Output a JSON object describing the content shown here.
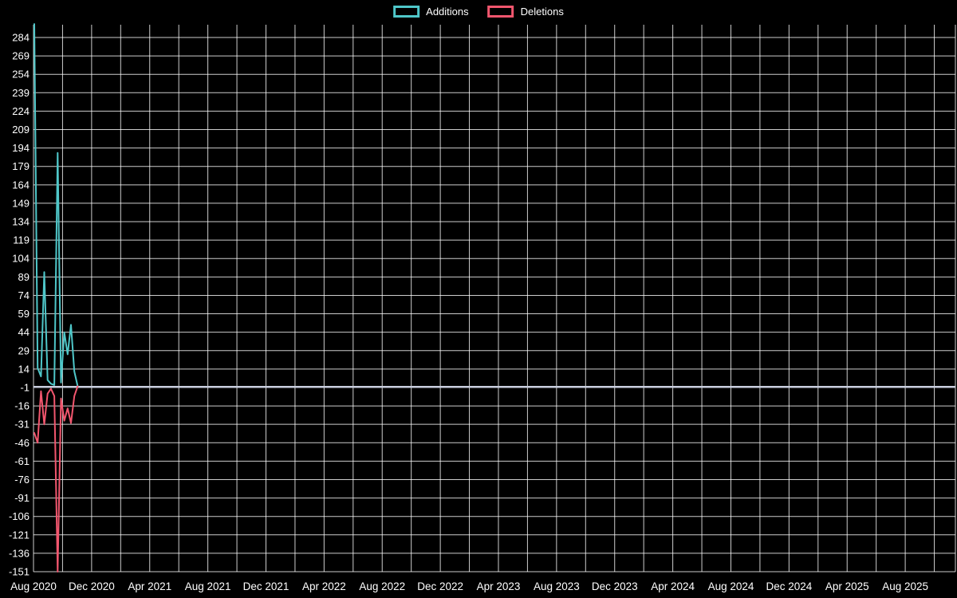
{
  "chart_data": {
    "type": "line",
    "title": "",
    "legend_position": "top",
    "grid": true,
    "background_color": "#000000",
    "grid_color": "rgba(255,255,255,0.8)",
    "zero_line": {
      "value": -0.5,
      "color": "#c9cede"
    },
    "x_axis": {
      "tick_labels": [
        "Aug 2020",
        "Dec 2020",
        "Apr 2021",
        "Aug 2021",
        "Dec 2021",
        "Apr 2022",
        "Aug 2022",
        "Dec 2022",
        "Apr 2023",
        "Aug 2023",
        "Dec 2023",
        "Apr 2024",
        "Aug 2024",
        "Dec 2024",
        "Apr 2025",
        "Aug 2025"
      ]
    },
    "y_axis": {
      "ticks": [
        284,
        269,
        254,
        239,
        224,
        209,
        194,
        179,
        164,
        149,
        134,
        119,
        104,
        89,
        74,
        59,
        44,
        29,
        14,
        -1,
        -16,
        -31,
        -46,
        -61,
        -76,
        -91,
        -106,
        -121,
        -136,
        -151
      ],
      "range": [
        -151,
        299
      ]
    },
    "x": [
      "2020-08-02",
      "2020-08-09",
      "2020-08-16",
      "2020-08-23",
      "2020-08-30",
      "2020-09-06",
      "2020-09-13",
      "2020-09-20",
      "2020-09-27",
      "2020-10-04",
      "2020-10-11",
      "2020-10-18",
      "2020-10-25",
      "2020-11-01"
    ],
    "series": [
      {
        "name": "Additions",
        "color": "#4fc7c9",
        "values": [
          295,
          15,
          8,
          93,
          5,
          2,
          1,
          190,
          3,
          44,
          26,
          50,
          12,
          0
        ]
      },
      {
        "name": "Deletions",
        "color": "#f2566e",
        "values": [
          -38,
          -46,
          -4,
          -31,
          -6,
          -2,
          -8,
          -151,
          -10,
          -28,
          -18,
          -30,
          -8,
          0
        ]
      }
    ]
  }
}
